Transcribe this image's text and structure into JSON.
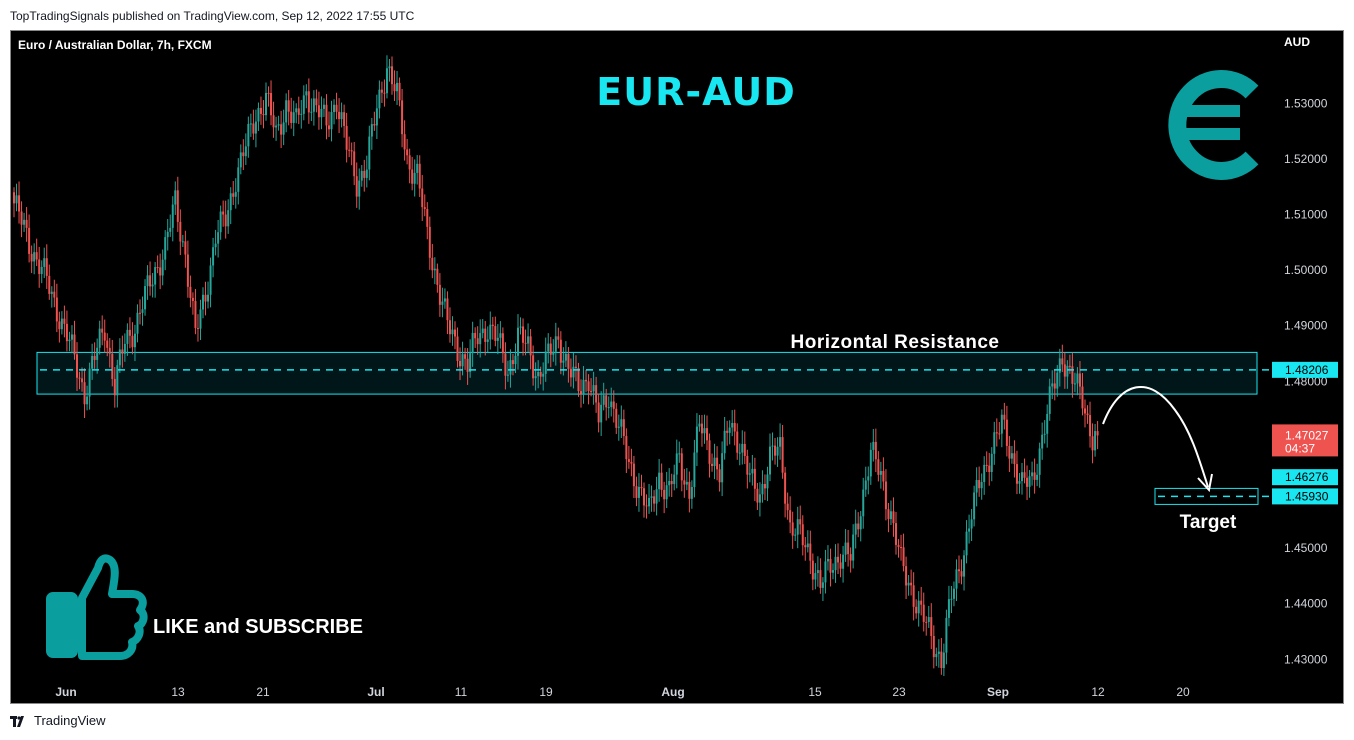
{
  "header": {
    "text": "TopTradingSignals published on TradingView.com, Sep 12, 2022 17:55 UTC"
  },
  "footer": {
    "brand": "TradingView"
  },
  "chart_data": {
    "type": "candlestick",
    "symbol": "Euro / Australian Dollar, 7h, FXCM",
    "title": "EUR-AUD",
    "currency": "AUD",
    "ylim": [
      1.427,
      1.543
    ],
    "y_ticks": [
      "1.53000",
      "1.52000",
      "1.51000",
      "1.50000",
      "1.49000",
      "1.48000",
      "1.45000",
      "1.44000",
      "1.43000"
    ],
    "x_ticks": [
      "Jun",
      "13",
      "21",
      "Jul",
      "11",
      "19",
      "Aug",
      "15",
      "23",
      "Sep",
      "12",
      "20"
    ],
    "price_labels": [
      {
        "value": "1.48206",
        "kind": "resistance"
      },
      {
        "value": "1.47027",
        "kind": "last",
        "sub": "04:37"
      },
      {
        "value": "1.46276",
        "kind": "level"
      },
      {
        "value": "1.45930",
        "kind": "target"
      }
    ],
    "resistance_zone": {
      "low": 1.4777,
      "high": 1.4852,
      "level": 1.48206,
      "label": "Horizontal Resistance"
    },
    "target": {
      "level": 1.4593,
      "label": "Target"
    },
    "last_price": 1.47027,
    "anchor_points": [
      [
        0,
        1.512
      ],
      [
        6,
        1.505
      ],
      [
        12,
        1.499
      ],
      [
        18,
        1.492
      ],
      [
        24,
        1.484
      ],
      [
        28,
        1.478
      ],
      [
        32,
        1.484
      ],
      [
        36,
        1.49
      ],
      [
        40,
        1.479
      ],
      [
        44,
        1.487
      ],
      [
        48,
        1.49
      ],
      [
        52,
        1.495
      ],
      [
        56,
        1.5
      ],
      [
        60,
        1.504
      ],
      [
        64,
        1.512
      ],
      [
        68,
        1.503
      ],
      [
        72,
        1.488
      ],
      [
        76,
        1.496
      ],
      [
        80,
        1.506
      ],
      [
        84,
        1.509
      ],
      [
        88,
        1.517
      ],
      [
        92,
        1.522
      ],
      [
        96,
        1.528
      ],
      [
        100,
        1.531
      ],
      [
        104,
        1.524
      ],
      [
        108,
        1.53
      ],
      [
        112,
        1.526
      ],
      [
        116,
        1.532
      ],
      [
        120,
        1.529
      ],
      [
        124,
        1.526
      ],
      [
        128,
        1.531
      ],
      [
        132,
        1.522
      ],
      [
        136,
        1.516
      ],
      [
        140,
        1.519
      ],
      [
        144,
        1.529
      ],
      [
        148,
        1.537
      ],
      [
        152,
        1.531
      ],
      [
        156,
        1.52
      ],
      [
        160,
        1.517
      ],
      [
        164,
        1.506
      ],
      [
        168,
        1.498
      ],
      [
        172,
        1.49
      ],
      [
        176,
        1.486
      ],
      [
        180,
        1.483
      ],
      [
        184,
        1.488
      ],
      [
        188,
        1.49
      ],
      [
        192,
        1.487
      ],
      [
        196,
        1.482
      ],
      [
        200,
        1.488
      ],
      [
        204,
        1.486
      ],
      [
        208,
        1.481
      ],
      [
        212,
        1.484
      ],
      [
        216,
        1.488
      ],
      [
        220,
        1.482
      ],
      [
        224,
        1.479
      ],
      [
        228,
        1.481
      ],
      [
        232,
        1.473
      ],
      [
        236,
        1.478
      ],
      [
        240,
        1.472
      ],
      [
        244,
        1.465
      ],
      [
        248,
        1.461
      ],
      [
        252,
        1.456
      ],
      [
        256,
        1.463
      ],
      [
        260,
        1.46
      ],
      [
        264,
        1.466
      ],
      [
        268,
        1.46
      ],
      [
        272,
        1.472
      ],
      [
        276,
        1.468
      ],
      [
        280,
        1.463
      ],
      [
        284,
        1.473
      ],
      [
        288,
        1.469
      ],
      [
        292,
        1.462
      ],
      [
        296,
        1.46
      ],
      [
        300,
        1.466
      ],
      [
        304,
        1.468
      ],
      [
        308,
        1.454
      ],
      [
        312,
        1.452
      ],
      [
        316,
        1.449
      ],
      [
        320,
        1.443
      ],
      [
        324,
        1.447
      ],
      [
        328,
        1.449
      ],
      [
        332,
        1.448
      ],
      [
        336,
        1.458
      ],
      [
        340,
        1.467
      ],
      [
        344,
        1.463
      ],
      [
        348,
        1.456
      ],
      [
        352,
        1.447
      ],
      [
        356,
        1.443
      ],
      [
        360,
        1.438
      ],
      [
        364,
        1.434
      ],
      [
        368,
        1.43
      ],
      [
        372,
        1.441
      ],
      [
        376,
        1.448
      ],
      [
        380,
        1.456
      ],
      [
        384,
        1.463
      ],
      [
        388,
        1.468
      ],
      [
        392,
        1.472
      ],
      [
        396,
        1.467
      ],
      [
        400,
        1.461
      ],
      [
        404,
        1.462
      ],
      [
        408,
        1.47
      ],
      [
        412,
        1.478
      ],
      [
        416,
        1.485
      ],
      [
        420,
        1.48
      ],
      [
        424,
        1.477
      ],
      [
        428,
        1.47
      ],
      [
        430,
        1.47027
      ]
    ]
  }
}
